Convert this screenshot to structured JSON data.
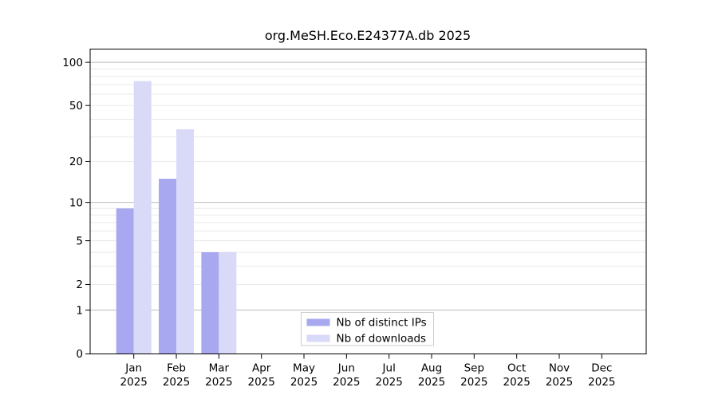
{
  "chart_data": {
    "type": "bar",
    "title": "org.MeSH.Eco.E24377A.db 2025",
    "categories": [
      "Jan 2025",
      "Feb 2025",
      "Mar 2025",
      "Apr 2025",
      "May 2025",
      "Jun 2025",
      "Jul 2025",
      "Aug 2025",
      "Sep 2025",
      "Oct 2025",
      "Nov 2025",
      "Dec 2025"
    ],
    "series": [
      {
        "name": "Nb of distinct IPs",
        "color": "#a8a8f0",
        "values": [
          9,
          15,
          4,
          0,
          0,
          0,
          0,
          0,
          0,
          0,
          0,
          0
        ]
      },
      {
        "name": "Nb of downloads",
        "color": "#d9d9f8",
        "values": [
          74,
          34,
          4,
          0,
          0,
          0,
          0,
          0,
          0,
          0,
          0,
          0
        ]
      }
    ],
    "y_scale": "log10(1+v)",
    "y_ticks": [
      0,
      1,
      2,
      5,
      10,
      20,
      50,
      100
    ],
    "y_minor_gridlines": [
      3,
      4,
      6,
      7,
      8,
      9,
      30,
      40,
      60,
      70,
      80,
      90
    ],
    "ylim": [
      0,
      120
    ],
    "xlabel": "",
    "ylabel": "",
    "grid": true,
    "legend_position": "bottom-center"
  },
  "colors": {
    "bar_distinct_ips": "#a8a8f0",
    "bar_downloads": "#d9d9f8",
    "grid_strong": "#bbbbbb",
    "grid_light": "#e9e9ee",
    "axis": "#000000",
    "legend_border": "#cccccc",
    "background": "#ffffff"
  }
}
